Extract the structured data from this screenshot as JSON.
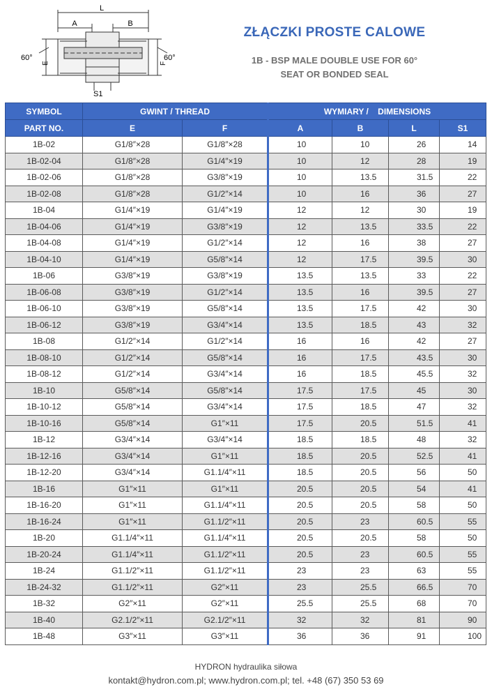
{
  "header": {
    "title": "ZŁĄCZKI PROSTE CALOWE",
    "subtitle_line1": "1B - BSP MALE DOUBLE USE FOR 60°",
    "subtitle_line2": "SEAT OR BONDED SEAL"
  },
  "diagram": {
    "label_L": "L",
    "label_A": "A",
    "label_B": "B",
    "label_E": "E",
    "label_F": "F",
    "label_S1": "S1",
    "angle_left": "60°",
    "angle_right": "60°"
  },
  "table": {
    "head_symbol": "SYMBOL",
    "head_part": "PART NO.",
    "head_thread": "GWINT / THREAD",
    "head_dimensions": "WYMIARY /    DIMENSIONS",
    "col_E": "E",
    "col_F": "F",
    "col_A": "A",
    "col_B": "B",
    "col_L": "L",
    "col_S1": "S1",
    "rows": [
      [
        "1B-02",
        "G1/8″×28",
        "G1/8″×28",
        "10",
        "10",
        "26",
        "14"
      ],
      [
        "1B-02-04",
        "G1/8″×28",
        "G1/4″×19",
        "10",
        "12",
        "28",
        "19"
      ],
      [
        "1B-02-06",
        "G1/8″×28",
        "G3/8″×19",
        "10",
        "13.5",
        "31.5",
        "22"
      ],
      [
        "1B-02-08",
        "G1/8″×28",
        "G1/2″×14",
        "10",
        "16",
        "36",
        "27"
      ],
      [
        "1B-04",
        "G1/4″×19",
        "G1/4″×19",
        "12",
        "12",
        "30",
        "19"
      ],
      [
        "1B-04-06",
        "G1/4″×19",
        "G3/8″×19",
        "12",
        "13.5",
        "33.5",
        "22"
      ],
      [
        "1B-04-08",
        "G1/4″×19",
        "G1/2″×14",
        "12",
        "16",
        "38",
        "27"
      ],
      [
        "1B-04-10",
        "G1/4″×19",
        "G5/8″×14",
        "12",
        "17.5",
        "39.5",
        "30"
      ],
      [
        "1B-06",
        "G3/8″×19",
        "G3/8″×19",
        "13.5",
        "13.5",
        "33",
        "22"
      ],
      [
        "1B-06-08",
        "G3/8″×19",
        "G1/2″×14",
        "13.5",
        "16",
        "39.5",
        "27"
      ],
      [
        "1B-06-10",
        "G3/8″×19",
        "G5/8″×14",
        "13.5",
        "17.5",
        "42",
        "30"
      ],
      [
        "1B-06-12",
        "G3/8″×19",
        "G3/4″×14",
        "13.5",
        "18.5",
        "43",
        "32"
      ],
      [
        "1B-08",
        "G1/2″×14",
        "G1/2″×14",
        "16",
        "16",
        "42",
        "27"
      ],
      [
        "1B-08-10",
        "G1/2″×14",
        "G5/8″×14",
        "16",
        "17.5",
        "43.5",
        "30"
      ],
      [
        "1B-08-12",
        "G1/2″×14",
        "G3/4″×14",
        "16",
        "18.5",
        "45.5",
        "32"
      ],
      [
        "1B-10",
        "G5/8″×14",
        "G5/8″×14",
        "17.5",
        "17.5",
        "45",
        "30"
      ],
      [
        "1B-10-12",
        "G5/8″×14",
        "G3/4″×14",
        "17.5",
        "18.5",
        "47",
        "32"
      ],
      [
        "1B-10-16",
        "G5/8″×14",
        "G1″×11",
        "17.5",
        "20.5",
        "51.5",
        "41"
      ],
      [
        "1B-12",
        "G3/4″×14",
        "G3/4″×14",
        "18.5",
        "18.5",
        "48",
        "32"
      ],
      [
        "1B-12-16",
        "G3/4″×14",
        "G1″×11",
        "18.5",
        "20.5",
        "52.5",
        "41"
      ],
      [
        "1B-12-20",
        "G3/4″×14",
        "G1.1/4″×11",
        "18.5",
        "20.5",
        "56",
        "50"
      ],
      [
        "1B-16",
        "G1″×11",
        "G1″×11",
        "20.5",
        "20.5",
        "54",
        "41"
      ],
      [
        "1B-16-20",
        "G1″×11",
        "G1.1/4″×11",
        "20.5",
        "20.5",
        "58",
        "50"
      ],
      [
        "1B-16-24",
        "G1″×11",
        "G1.1/2″×11",
        "20.5",
        "23",
        "60.5",
        "55"
      ],
      [
        "1B-20",
        "G1.1/4″×11",
        "G1.1/4″×11",
        "20.5",
        "20.5",
        "58",
        "50"
      ],
      [
        "1B-20-24",
        "G1.1/4″×11",
        "G1.1/2″×11",
        "20.5",
        "23",
        "60.5",
        "55"
      ],
      [
        "1B-24",
        "G1.1/2″×11",
        "G1.1/2″×11",
        "23",
        "23",
        "63",
        "55"
      ],
      [
        "1B-24-32",
        "G1.1/2″×11",
        "G2″×11",
        "23",
        "25.5",
        "66.5",
        "70"
      ],
      [
        "1B-32",
        "G2″×11",
        "G2″×11",
        "25.5",
        "25.5",
        "68",
        "70"
      ],
      [
        "1B-40",
        "G2.1/2″×11",
        "G2.1/2″×11",
        "32",
        "32",
        "81",
        "90"
      ],
      [
        "1B-48",
        "G3″×11",
        "G3″×11",
        "36",
        "36",
        "91",
        "100"
      ]
    ]
  },
  "footer": {
    "company": "HYDRON hydraulika siłowa",
    "contact": "kontakt@hydron.com.pl; www.hydron.com.pl; tel. +48 (67) 350 53 69"
  },
  "colors": {
    "accent": "#3f6bc4",
    "title": "#3a67b8",
    "stripe": "#e0e0e0"
  }
}
